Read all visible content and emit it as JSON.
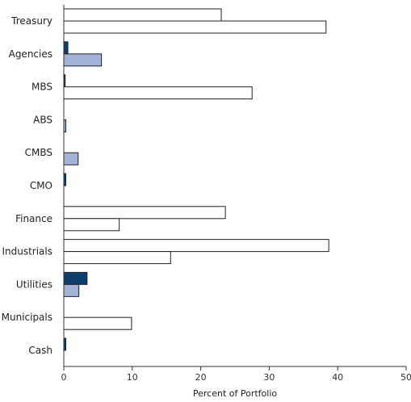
{
  "chart_data": {
    "type": "bar",
    "orientation": "horizontal",
    "categories": [
      "Treasury",
      "Agencies",
      "MBS",
      "ABS",
      "CMBS",
      "CMO",
      "Finance",
      "Industrials",
      "Utilities",
      "Municipals",
      "Cash"
    ],
    "series": [
      {
        "values": [
          23.0,
          0.6,
          0.2,
          0.0,
          0.0,
          0.3,
          23.6,
          38.7,
          3.4,
          0.0,
          0.3
        ],
        "color": "#0e3e6e"
      },
      {
        "values": [
          38.3,
          5.5,
          27.5,
          0.3,
          2.1,
          0.0,
          8.1,
          15.6,
          2.2,
          9.9,
          0.0
        ],
        "color": "#a3b3d8"
      }
    ],
    "bar_fill_rules": {
      "Treasury": [
        "#ffffff",
        "#ffffff"
      ],
      "Agencies": [
        "#0e3e6e",
        "#a3b3d8"
      ],
      "MBS": [
        "#0e3e6e",
        "#ffffff"
      ],
      "ABS": [
        "#0e3e6e",
        "#a3b3d8"
      ],
      "CMBS": [
        "#0e3e6e",
        "#a3b3d8"
      ],
      "CMO": [
        "#0e3e6e",
        "#a3b3d8"
      ],
      "Finance": [
        "#ffffff",
        "#ffffff"
      ],
      "Industrials": [
        "#ffffff",
        "#ffffff"
      ],
      "Utilities": [
        "#0e3e6e",
        "#a3b3d8"
      ],
      "Municipals": [
        "#ffffff",
        "#ffffff"
      ],
      "Cash": [
        "#0e3e6e",
        "#a3b3d8"
      ]
    },
    "xlabel": "Percent of Portfolio",
    "ylabel": "",
    "title": "",
    "xlim": [
      0,
      50
    ],
    "xticks": [
      "0",
      "10",
      "20",
      "30",
      "40",
      "50"
    ],
    "grid": false,
    "legend": "none"
  }
}
